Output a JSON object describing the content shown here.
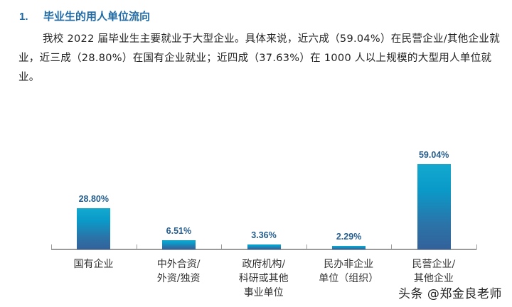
{
  "section": {
    "number": "1.",
    "title": "毕业生的用人单位流向"
  },
  "paragraph": "我校 2022 届毕业生主要就业于大型企业。具体来说，近六成（59.04%）在民营企业/其他企业就业，近三成（28.80%）在国有企业就业；近四成（37.63%）在 1000 人以上规模的大型用人单位就业。",
  "chart_data": {
    "type": "bar",
    "title": "",
    "xlabel": "",
    "ylabel": "",
    "categories": [
      "国有企业",
      "中外合资/外资/独资",
      "政府机构/科研或其他事业单位",
      "民办非企业单位（组织）",
      "民营企业/其他企业"
    ],
    "values": [
      28.8,
      6.51,
      3.36,
      2.29,
      59.04
    ],
    "value_labels": [
      "28.80%",
      "6.51%",
      "3.36%",
      "2.29%",
      "59.04%"
    ],
    "unit": "%",
    "grid": false,
    "legend": null,
    "ylim": [
      0,
      60
    ],
    "bar_gradient": [
      "#13a9cf",
      "#33619a"
    ],
    "label_color": "#255e8e"
  },
  "categories_display": [
    [
      "国有企业"
    ],
    [
      "中外合资/",
      "外资/独资"
    ],
    [
      "政府机构/",
      "科研或其他",
      "事业单位"
    ],
    [
      "民办非企业",
      "单位（组织）"
    ],
    [
      "民营企业/",
      "其他企业"
    ]
  ],
  "watermark": "头条 @郑金良老师"
}
